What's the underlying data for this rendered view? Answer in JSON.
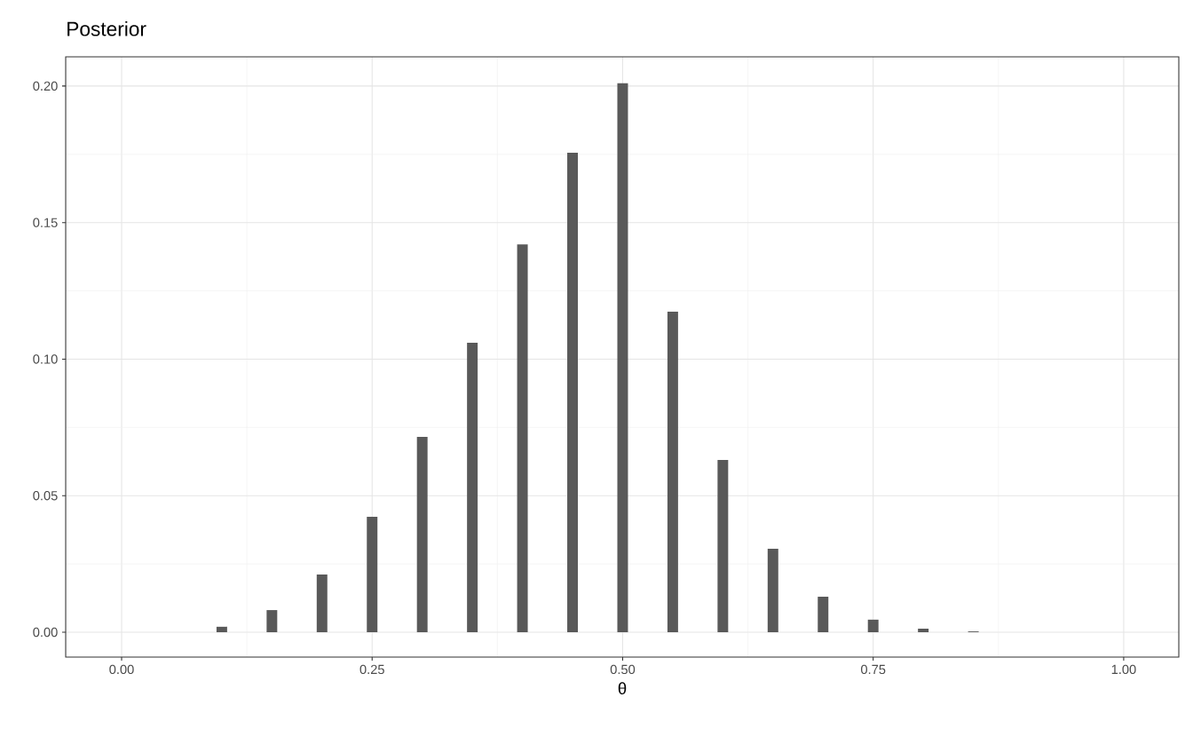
{
  "chart_data": {
    "type": "bar",
    "title": "Posterior",
    "xlabel": "θ",
    "x": [
      0.1,
      0.15,
      0.2,
      0.25,
      0.3,
      0.35,
      0.4,
      0.45,
      0.5,
      0.55,
      0.6,
      0.65,
      0.7,
      0.75,
      0.8,
      0.85
    ],
    "values": [
      0.002,
      0.0081,
      0.0211,
      0.0423,
      0.0715,
      0.106,
      0.142,
      0.1756,
      0.201,
      0.1174,
      0.0631,
      0.0306,
      0.013,
      0.0046,
      0.0013,
      0.0003
    ],
    "color": "#595959",
    "xlim": [
      -0.0558,
      1.055
    ],
    "ylim": [
      -0.0091,
      0.2107
    ],
    "xticks": [
      {
        "value": 0,
        "label": "0.00"
      },
      0.25,
      {
        "value": 0.5,
        "label": "0.50"
      },
      0.75,
      {
        "value": 1,
        "label": "1.00"
      }
    ],
    "yticks": [
      {
        "value": 0,
        "label": "0.00"
      },
      0.05,
      {
        "value": 0.1,
        "label": "0.10"
      },
      0.15,
      {
        "value": 0.2,
        "label": "0.20"
      }
    ],
    "grid": true
  }
}
